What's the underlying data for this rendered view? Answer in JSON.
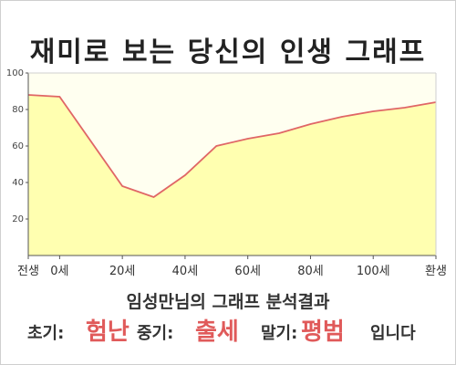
{
  "page_title": "재미로 보는 당신의 인생 그래프",
  "summary_heading": "임성만님의 그래프 분석결과",
  "result": {
    "early_label": "초기:",
    "early_value": "험난",
    "middle_label": "중기:",
    "middle_value": "출세",
    "late_label": "말기:",
    "late_value": "평범",
    "ending": "입니다"
  },
  "colors": {
    "line": "#e06666",
    "fill": "#ffffb0",
    "plot_bg": "#fffff0",
    "highlight": "#e05a5a"
  },
  "chart_data": {
    "type": "area",
    "title": "재미로 보는 당신의 인생 그래프",
    "xlabel": "",
    "ylabel": "",
    "x_tick_labels": [
      "전생",
      "0세",
      "20세",
      "40세",
      "60세",
      "80세",
      "100세",
      "환생"
    ],
    "x_tick_positions": [
      -10,
      0,
      20,
      40,
      60,
      80,
      100,
      120
    ],
    "xlim": [
      -10,
      120
    ],
    "ylim": [
      0,
      100
    ],
    "y_ticks": [
      20,
      40,
      60,
      80,
      100
    ],
    "grid": false,
    "series": [
      {
        "points": [
          [
            -10,
            88
          ],
          [
            0,
            87
          ],
          [
            20,
            38
          ],
          [
            30,
            32
          ],
          [
            40,
            44
          ],
          [
            50,
            60
          ],
          [
            60,
            64
          ],
          [
            70,
            67
          ],
          [
            80,
            72
          ],
          [
            90,
            76
          ],
          [
            100,
            79
          ],
          [
            110,
            81
          ],
          [
            120,
            84
          ]
        ]
      }
    ]
  }
}
